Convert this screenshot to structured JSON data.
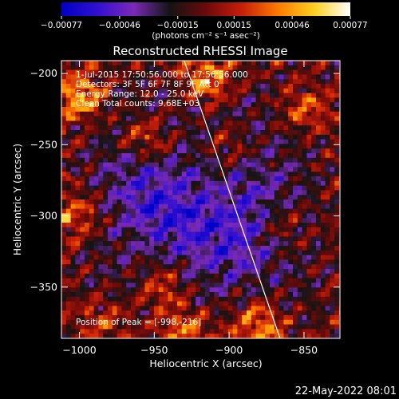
{
  "chart_data": {
    "type": "heatmap",
    "title": "Reconstructed RHESSI Image",
    "xlabel": "Heliocentric X (arcsec)",
    "ylabel": "Heliocentric Y (arcsec)",
    "xlim": [
      -1012,
      -826
    ],
    "ylim": [
      -386,
      -191
    ],
    "x_ticks": [
      -1000,
      -950,
      -900,
      -850
    ],
    "y_ticks": [
      -200,
      -250,
      -300,
      -350
    ],
    "x_tick_labels": [
      "−1000",
      "−950",
      "−900",
      "−850"
    ],
    "y_tick_labels": [
      "−200",
      "−250",
      "−300",
      "−350"
    ],
    "colorbar": {
      "range": [
        -0.00077,
        0.00077
      ],
      "tick_values": [
        -0.00077,
        -0.00046,
        -0.00015,
        0.00015,
        0.00046,
        0.00077
      ],
      "tick_labels": [
        "−0.00077",
        "−0.00046",
        "−0.00015",
        "0.00015",
        "0.00046",
        "0.00077"
      ],
      "unit_label": "(photons cm⁻² s⁻¹ asec⁻²)",
      "colors": [
        "#0000c8",
        "#3010d0",
        "#7a2ab8",
        "#141414",
        "#6a0a0a",
        "#c81e0a",
        "#ff7a00",
        "#ffd020",
        "#ffffff"
      ]
    },
    "annotations": [
      "1-Jul-2015 17:50:56.000 to 17:56:56.000",
      "Detectors: 3F 5F 6F 7F 8F 9F  Att 0",
      "Energy Range: 12.0 - 25.0 keV",
      "Clean    Total counts: 9.68E+03"
    ],
    "peak_label": "Position of Peak = [-998,-216]",
    "limb_line": [
      [
        -930,
        -191
      ],
      [
        -866,
        -386
      ]
    ],
    "bright_regions": [
      {
        "x": -998,
        "y": -216,
        "value": 0.00077
      },
      {
        "x": -915,
        "y": -205,
        "value": 0.0007
      },
      {
        "x": -850,
        "y": -225,
        "value": 0.00055
      },
      {
        "x": -955,
        "y": -245,
        "value": 0.0005
      },
      {
        "x": -1000,
        "y": -300,
        "value": 0.00045
      },
      {
        "x": -945,
        "y": -350,
        "value": 0.0005
      },
      {
        "x": -880,
        "y": -375,
        "value": 0.0006
      },
      {
        "x": -930,
        "y": -380,
        "value": 0.0005
      },
      {
        "x": -865,
        "y": -305,
        "value": 0.00035
      },
      {
        "x": -985,
        "y": -370,
        "value": 0.0004
      },
      {
        "x": -900,
        "y": -250,
        "value": 0.0003
      }
    ],
    "dark_regions": [
      {
        "x": -935,
        "y": -300,
        "value": -0.00045
      },
      {
        "x": -900,
        "y": -320,
        "value": -0.0004
      },
      {
        "x": -960,
        "y": -280,
        "value": -0.00035
      },
      {
        "x": -880,
        "y": -290,
        "value": -0.0003
      }
    ]
  },
  "footer": {
    "timestamp": "22-May-2022 08:01"
  }
}
